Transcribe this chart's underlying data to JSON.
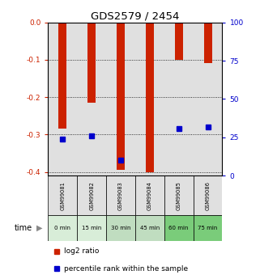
{
  "title": "GDS2579 / 2454",
  "samples": [
    "GSM99081",
    "GSM99082",
    "GSM99083",
    "GSM99084",
    "GSM99085",
    "GSM99086"
  ],
  "time_labels": [
    "0 min",
    "15 min",
    "30 min",
    "45 min",
    "60 min",
    "75 min"
  ],
  "time_colors": [
    "#d8edd8",
    "#d8edd8",
    "#c0ddc0",
    "#c0ddc0",
    "#7acc7a",
    "#7acc7a"
  ],
  "sample_bg": "#e0e0e0",
  "log2_values": [
    -0.285,
    -0.215,
    -0.395,
    -0.401,
    -0.1,
    -0.108
  ],
  "percentile_values": [
    24,
    26,
    10,
    null,
    31,
    32
  ],
  "ylim_left": [
    -0.41,
    0.0
  ],
  "ylim_right": [
    0,
    100
  ],
  "yticks_left": [
    0.0,
    -0.1,
    -0.2,
    -0.3,
    -0.4
  ],
  "yticks_right": [
    0,
    25,
    50,
    75,
    100
  ],
  "bar_color": "#cc2200",
  "dot_color": "#0000cc",
  "grid_color": "#000000",
  "left_tick_color": "#cc2200",
  "right_tick_color": "#0000cc",
  "bar_width": 0.28
}
